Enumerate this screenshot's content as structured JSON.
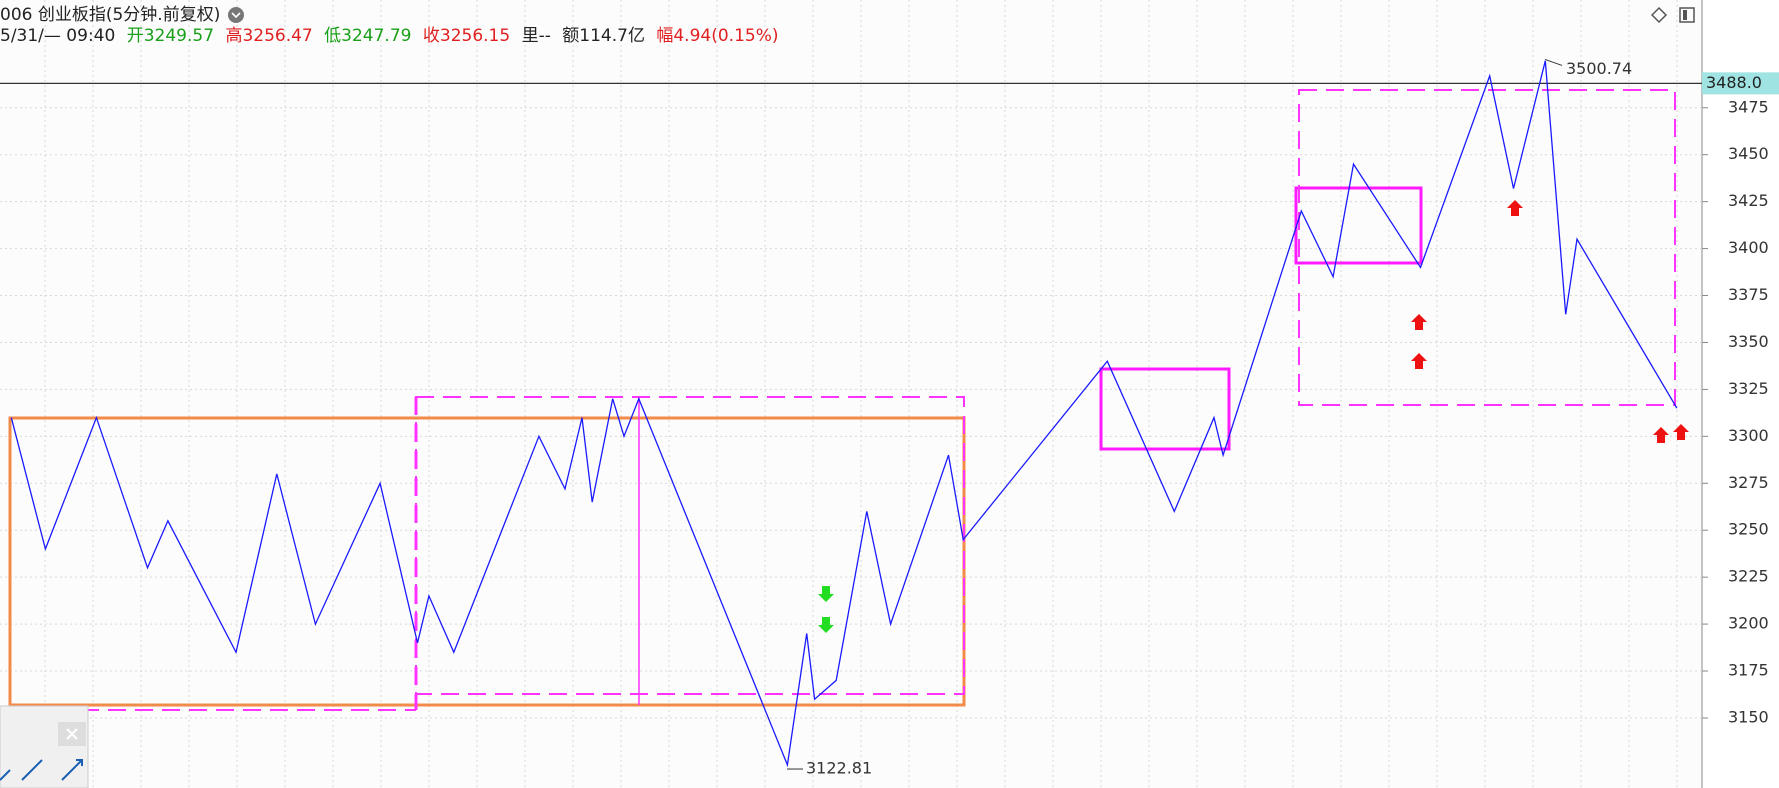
{
  "header": {
    "title": "006 创业板指(5分钟.前复权)",
    "time": "5/31/— 09:40",
    "open_label": "开",
    "open": "3249.57",
    "high_label": "高",
    "high": "3256.47",
    "low_label": "低",
    "low": "3247.79",
    "close_label": "收",
    "close": "3256.15",
    "volume": "里--",
    "amount": "额114.7亿",
    "change_label": "幅",
    "change": "4.94(0.15%)"
  },
  "chart_data": {
    "type": "line",
    "color": "#1a1aff",
    "values": [
      3310,
      3240,
      3310,
      3230,
      3255,
      3185,
      3280,
      3200,
      3275,
      3190,
      3215,
      3185,
      3300,
      3272,
      3310,
      3265,
      3320,
      3300,
      3320,
      3125,
      3195,
      3160,
      3170,
      3260,
      3200,
      3290,
      3245,
      3340,
      3260,
      3310,
      3290,
      3420,
      3385,
      3445,
      3390,
      3492,
      3432,
      3500,
      3365,
      3405,
      3315
    ],
    "ylim": [
      3112.7,
      3532.4
    ],
    "yticks": [
      3150,
      3175,
      3200,
      3225,
      3250,
      3275,
      3300,
      3325,
      3350,
      3375,
      3400,
      3425,
      3450,
      3475
    ],
    "grid": true,
    "high_marker": 3500.74,
    "low_marker": 3122.81,
    "current_price": {
      "value": 3488,
      "label": "3488.0"
    }
  }
}
